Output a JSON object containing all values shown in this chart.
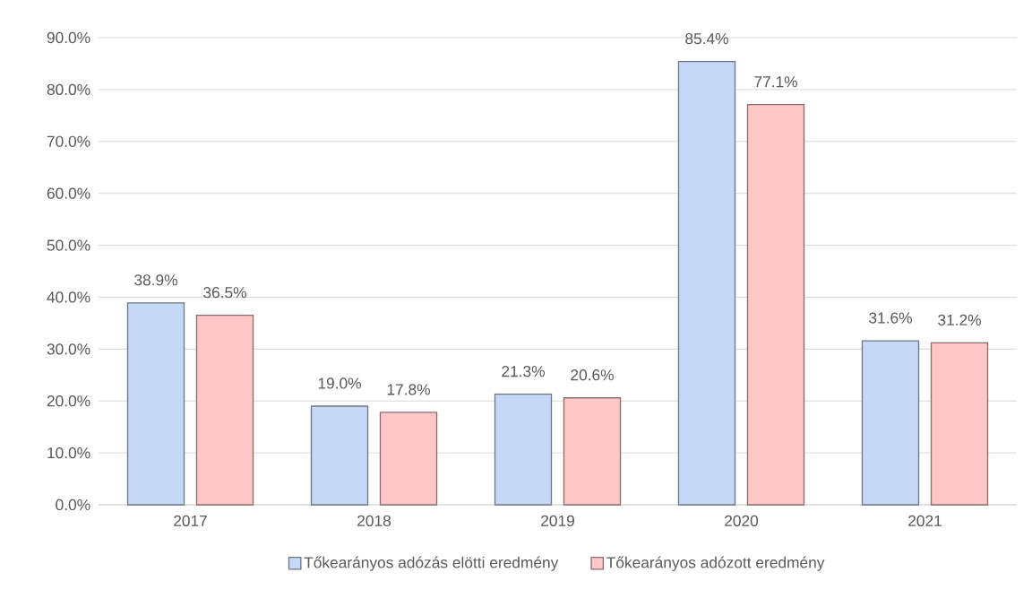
{
  "chart_data": {
    "type": "bar",
    "categories": [
      "2017",
      "2018",
      "2019",
      "2020",
      "2021"
    ],
    "series": [
      {
        "name": "Tőkearányos adózás elötti eredmény",
        "color": "#c5d9f7",
        "values": [
          38.9,
          19.0,
          21.3,
          85.4,
          31.6
        ],
        "value_labels": [
          "38.9%",
          "19.0%",
          "21.3%",
          "85.4%",
          "31.6%"
        ]
      },
      {
        "name": "Tőkearányos adózott eredmény",
        "color": "#ffc7c7",
        "values": [
          36.5,
          17.8,
          20.6,
          77.1,
          31.2
        ],
        "value_labels": [
          "36.5%",
          "17.8%",
          "20.6%",
          "77.1%",
          "31.2%"
        ]
      }
    ],
    "ylim": [
      0,
      90
    ],
    "yticks": [
      {
        "value": 0,
        "label": "0.0%"
      },
      {
        "value": 10,
        "label": "10.0%"
      },
      {
        "value": 20,
        "label": "20.0%"
      },
      {
        "value": 30,
        "label": "30.0%"
      },
      {
        "value": 40,
        "label": "40.0%"
      },
      {
        "value": 50,
        "label": "50.0%"
      },
      {
        "value": 60,
        "label": "60.0%"
      },
      {
        "value": 70,
        "label": "70.0%"
      },
      {
        "value": 80,
        "label": "80.0%"
      },
      {
        "value": 90,
        "label": "90.0%"
      }
    ],
    "grid": "y",
    "legend": "bottom"
  }
}
